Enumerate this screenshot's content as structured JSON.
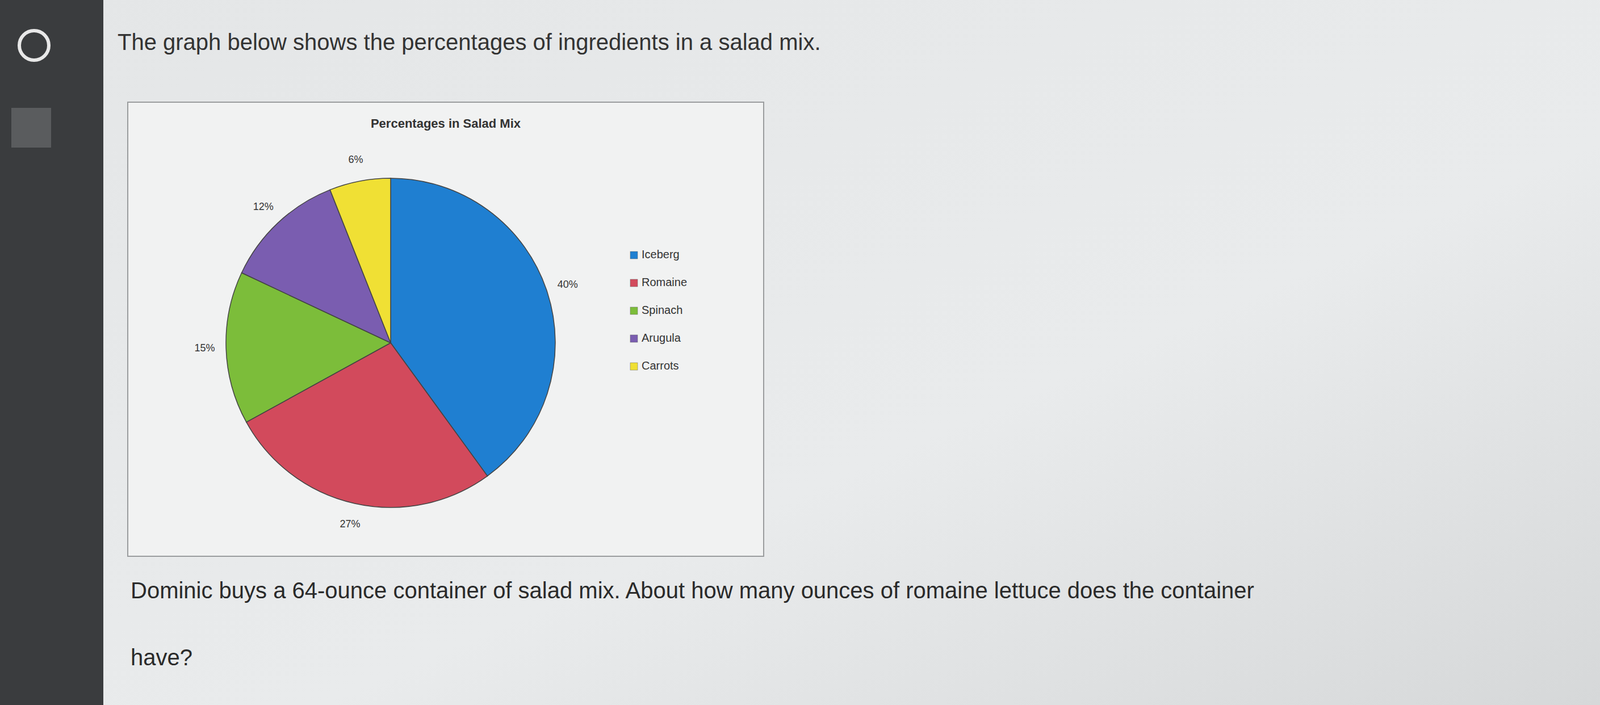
{
  "intro": "The graph below shows the percentages of ingredients in a salad mix.",
  "chart_data": {
    "type": "pie",
    "title": "Percentages in Salad Mix",
    "categories": [
      "Iceberg",
      "Romaine",
      "Spinach",
      "Arugula",
      "Carrots"
    ],
    "values": [
      40,
      27,
      15,
      12,
      6
    ],
    "value_labels": [
      "40%",
      "27%",
      "15%",
      "12%",
      "6%"
    ],
    "colors": [
      "#1f7fd1",
      "#d24a5c",
      "#7cbd3a",
      "#7a5db0",
      "#f0e034"
    ],
    "data_labels": true,
    "legend": "right"
  },
  "question": [
    "Dominic buys a 64-ounce container of salad mix. About how many ounces of romaine lettuce does the container",
    "have?"
  ]
}
